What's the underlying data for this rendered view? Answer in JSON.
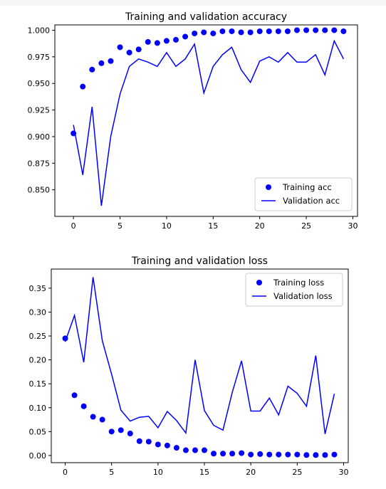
{
  "chart_data": [
    {
      "type": "scatter+line",
      "title": "Training and validation accuracy",
      "xlabel": "",
      "ylabel": "",
      "xlim": [
        -2,
        30.5
      ],
      "ylim": [
        0.825,
        1.005
      ],
      "xticks": [
        0,
        5,
        10,
        15,
        20,
        25,
        30
      ],
      "yticks": [
        0.85,
        0.875,
        0.9,
        0.925,
        0.95,
        0.975,
        1.0
      ],
      "ytick_labels": [
        "0.850",
        "0.875",
        "0.900",
        "0.925",
        "0.950",
        "0.975",
        "1.000"
      ],
      "legend_position": "bottom-right",
      "grid": false,
      "x": [
        0,
        1,
        2,
        3,
        4,
        5,
        6,
        7,
        8,
        9,
        10,
        11,
        12,
        13,
        14,
        15,
        16,
        17,
        18,
        19,
        20,
        21,
        22,
        23,
        24,
        25,
        26,
        27,
        28,
        29
      ],
      "series": [
        {
          "name": "Training acc",
          "style": "dots",
          "color": "#0000ff",
          "values": [
            0.903,
            0.947,
            0.963,
            0.969,
            0.971,
            0.984,
            0.979,
            0.982,
            0.989,
            0.988,
            0.99,
            0.991,
            0.994,
            0.997,
            0.998,
            0.997,
            0.999,
            0.999,
            0.998,
            0.998,
            0.999,
            0.999,
            0.999,
            0.999,
            1.0,
            1.0,
            1.0,
            1.0,
            1.0,
            0.999
          ]
        },
        {
          "name": "Validation acc",
          "style": "line",
          "color": "#0000ff",
          "values": [
            0.911,
            0.864,
            0.928,
            0.835,
            0.9,
            0.94,
            0.966,
            0.973,
            0.97,
            0.966,
            0.979,
            0.966,
            0.973,
            0.987,
            0.941,
            0.966,
            0.977,
            0.984,
            0.963,
            0.951,
            0.971,
            0.975,
            0.97,
            0.979,
            0.97,
            0.97,
            0.977,
            0.958,
            0.99,
            0.973
          ]
        }
      ]
    },
    {
      "type": "scatter+line",
      "title": "Training and validation loss",
      "xlabel": "",
      "ylabel": "",
      "xlim": [
        -1.5,
        30.5
      ],
      "ylim": [
        -0.015,
        0.39
      ],
      "xticks": [
        0,
        5,
        10,
        15,
        20,
        25,
        30
      ],
      "yticks": [
        0.0,
        0.05,
        0.1,
        0.15,
        0.2,
        0.25,
        0.3,
        0.35
      ],
      "ytick_labels": [
        "0.00",
        "0.05",
        "0.10",
        "0.15",
        "0.20",
        "0.25",
        "0.30",
        "0.35"
      ],
      "legend_position": "top-right",
      "grid": false,
      "x": [
        0,
        1,
        2,
        3,
        4,
        5,
        6,
        7,
        8,
        9,
        10,
        11,
        12,
        13,
        14,
        15,
        16,
        17,
        18,
        19,
        20,
        21,
        22,
        23,
        24,
        25,
        26,
        27,
        28,
        29
      ],
      "series": [
        {
          "name": "Training loss",
          "style": "dots",
          "color": "#0000ff",
          "values": [
            0.245,
            0.126,
            0.103,
            0.081,
            0.075,
            0.05,
            0.053,
            0.046,
            0.03,
            0.029,
            0.023,
            0.021,
            0.016,
            0.011,
            0.011,
            0.011,
            0.004,
            0.004,
            0.004,
            0.005,
            0.002,
            0.003,
            0.002,
            0.002,
            0.002,
            0.002,
            0.001,
            0.001,
            0.001,
            0.002
          ]
        },
        {
          "name": "Validation loss",
          "style": "line",
          "color": "#0000ff",
          "values": [
            0.238,
            0.293,
            0.195,
            0.373,
            0.24,
            0.17,
            0.095,
            0.072,
            0.08,
            0.082,
            0.058,
            0.092,
            0.073,
            0.047,
            0.2,
            0.094,
            0.063,
            0.053,
            0.132,
            0.198,
            0.093,
            0.093,
            0.12,
            0.085,
            0.145,
            0.13,
            0.103,
            0.209,
            0.045,
            0.129
          ]
        }
      ]
    }
  ]
}
